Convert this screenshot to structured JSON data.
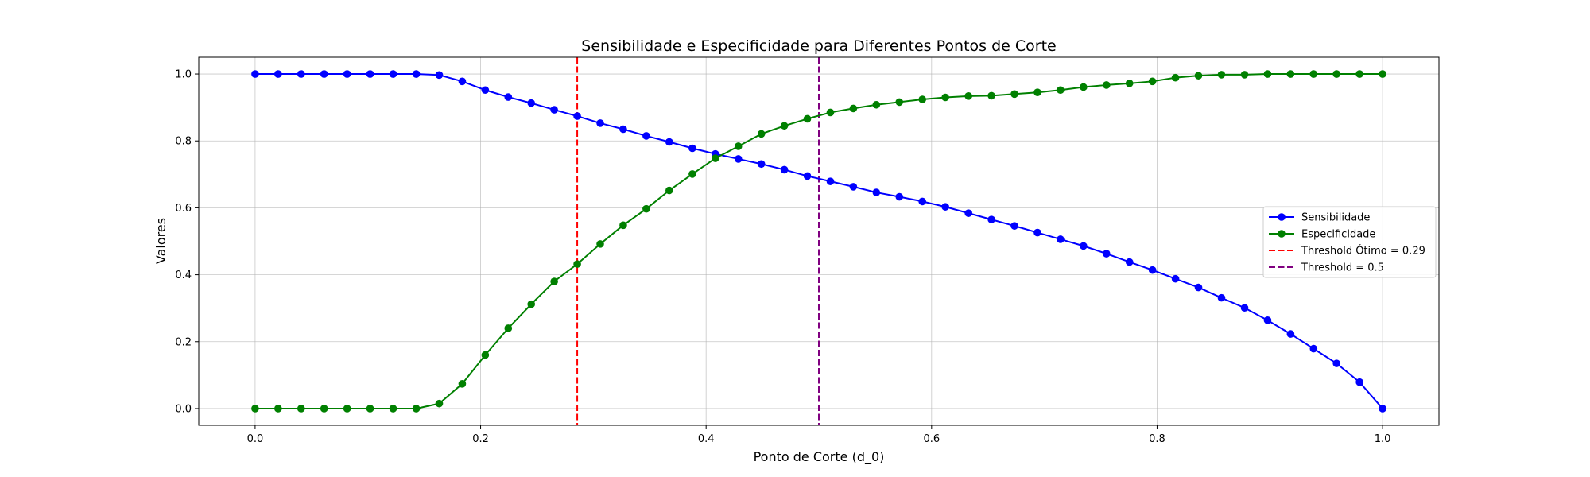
{
  "chart_data": {
    "type": "line",
    "title": "Sensibilidade e Especificidade para Diferentes Pontos de Corte",
    "xlabel": "Ponto de Corte (d_0)",
    "ylabel": "Valores",
    "xlim": [
      -0.05,
      1.05
    ],
    "ylim": [
      -0.05,
      1.05
    ],
    "x_ticks": [
      0.0,
      0.2,
      0.4,
      0.6,
      0.8,
      1.0
    ],
    "y_ticks": [
      0.0,
      0.2,
      0.4,
      0.6,
      0.8,
      1.0
    ],
    "x_tick_labels": [
      "0.0",
      "0.2",
      "0.4",
      "0.6",
      "0.8",
      "1.0"
    ],
    "y_tick_labels": [
      "0.0",
      "0.2",
      "0.4",
      "0.6",
      "0.8",
      "1.0"
    ],
    "grid": true,
    "legend_position": "center-right",
    "x": [
      0.0,
      0.0204,
      0.0408,
      0.0612,
      0.0816,
      0.102,
      0.1224,
      0.1429,
      0.1633,
      0.1837,
      0.2041,
      0.2245,
      0.2449,
      0.2653,
      0.2857,
      0.3061,
      0.3265,
      0.3469,
      0.3673,
      0.3878,
      0.4082,
      0.4286,
      0.449,
      0.4694,
      0.4898,
      0.5102,
      0.5306,
      0.551,
      0.5714,
      0.5918,
      0.6122,
      0.6327,
      0.6531,
      0.6735,
      0.6939,
      0.7143,
      0.7347,
      0.7551,
      0.7755,
      0.7959,
      0.8163,
      0.8367,
      0.8571,
      0.8776,
      0.898,
      0.9184,
      0.9388,
      0.9592,
      0.9796,
      1.0
    ],
    "series": [
      {
        "name": "Sensibilidade",
        "color": "#0000ff",
        "style": "solid",
        "marker": "circle",
        "values": [
          1.0,
          1.0,
          1.0,
          1.0,
          1.0,
          1.0,
          1.0,
          1.0,
          0.997,
          0.978,
          0.952,
          0.931,
          0.913,
          0.893,
          0.874,
          0.853,
          0.835,
          0.815,
          0.797,
          0.778,
          0.761,
          0.746,
          0.731,
          0.714,
          0.695,
          0.679,
          0.663,
          0.646,
          0.633,
          0.619,
          0.603,
          0.584,
          0.565,
          0.546,
          0.526,
          0.506,
          0.486,
          0.463,
          0.438,
          0.414,
          0.388,
          0.362,
          0.331,
          0.301,
          0.264,
          0.223,
          0.179,
          0.135,
          0.079,
          0.0
        ]
      },
      {
        "name": "Especificidade",
        "color": "#008000",
        "style": "solid",
        "marker": "circle",
        "values": [
          0.0,
          0.0,
          0.0,
          0.0,
          0.0,
          0.0,
          0.0,
          0.0,
          0.015,
          0.074,
          0.16,
          0.24,
          0.312,
          0.38,
          0.432,
          0.492,
          0.548,
          0.597,
          0.652,
          0.701,
          0.748,
          0.784,
          0.821,
          0.845,
          0.866,
          0.885,
          0.897,
          0.908,
          0.916,
          0.924,
          0.93,
          0.934,
          0.935,
          0.94,
          0.945,
          0.952,
          0.961,
          0.967,
          0.972,
          0.978,
          0.989,
          0.995,
          0.998,
          0.998,
          1.0,
          1.0,
          1.0,
          1.0,
          1.0,
          1.0
        ]
      }
    ],
    "vlines": [
      {
        "name": "Threshold Ótimo = 0.29",
        "x": 0.2857,
        "color": "#ff0000",
        "style": "dashed"
      },
      {
        "name": "Threshold = 0.5",
        "x": 0.5,
        "color": "#800080",
        "style": "dashed"
      }
    ]
  }
}
